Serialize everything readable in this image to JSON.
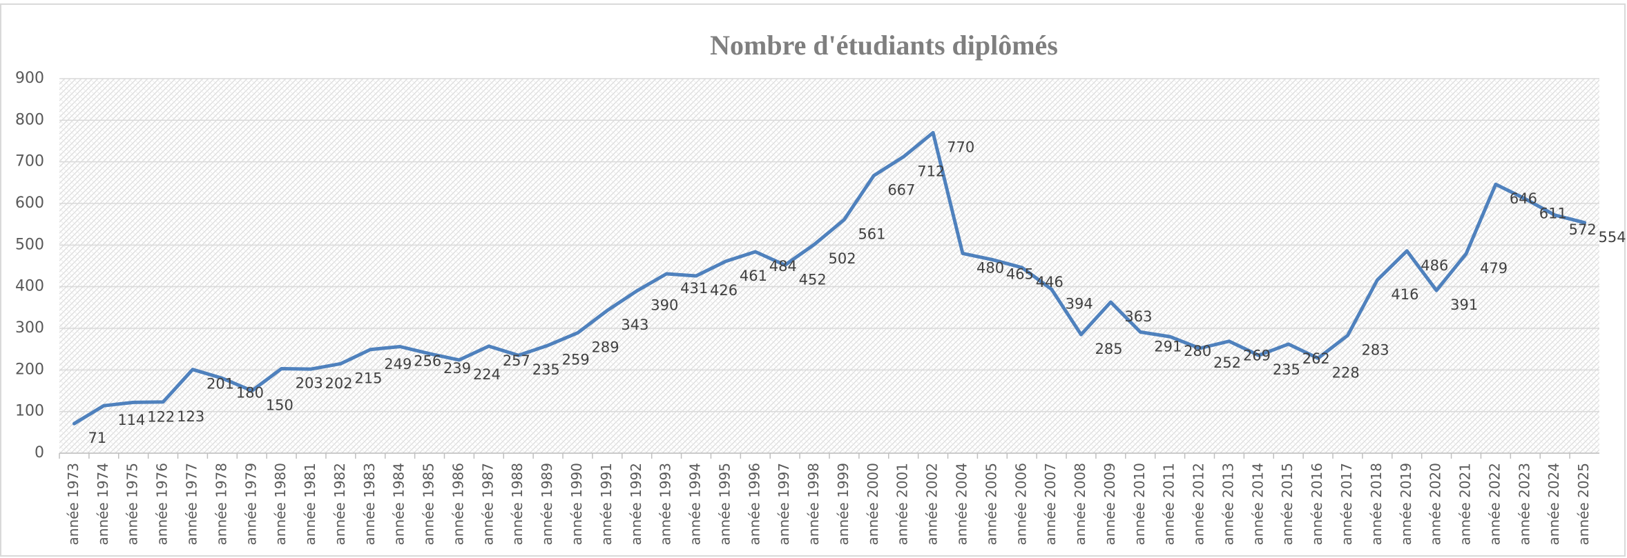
{
  "chart_data": {
    "type": "line",
    "title": "Nombre d'étudiants diplômés",
    "categories": [
      "année 1973",
      "année 1974",
      "année 1975",
      "année 1976",
      "année 1977",
      "année 1978",
      "année 1979",
      "année 1980",
      "année 1981",
      "année 1982",
      "année 1983",
      "année 1984",
      "année 1985",
      "année 1986",
      "année 1987",
      "année 1988",
      "année 1989",
      "année 1990",
      "année 1991",
      "année 1992",
      "année 1993",
      "année 1994",
      "année 1995",
      "année 1996",
      "année 1997",
      "année 1998",
      "année 1999",
      "année 2000",
      "année 2001",
      "année 2002",
      "année 2004",
      "année 2005",
      "année 2006",
      "année 2007",
      "année 2008",
      "année 2009",
      "année 2010",
      "année 2011",
      "année 2012",
      "année 2013",
      "année 2014",
      "année 2015",
      "année 2016",
      "année 2017",
      "année 2018",
      "année 2019",
      "année 2020",
      "année 2021",
      "année 2022",
      "année 2023",
      "année 2024",
      "année 2025"
    ],
    "values": [
      71,
      114,
      122,
      123,
      201,
      180,
      150,
      203,
      202,
      215,
      249,
      256,
      239,
      224,
      257,
      235,
      259,
      289,
      343,
      390,
      431,
      426,
      461,
      484,
      452,
      502,
      561,
      667,
      712,
      770,
      480,
      465,
      446,
      394,
      285,
      363,
      291,
      280,
      252,
      269,
      235,
      262,
      228,
      283,
      416,
      486,
      391,
      479,
      646,
      611,
      572,
      554
    ],
    "color": "#4f81bd",
    "ylim": [
      0,
      900
    ],
    "yticks": [
      0,
      100,
      200,
      300,
      400,
      500,
      600,
      700,
      800,
      900
    ],
    "grid": true
  }
}
